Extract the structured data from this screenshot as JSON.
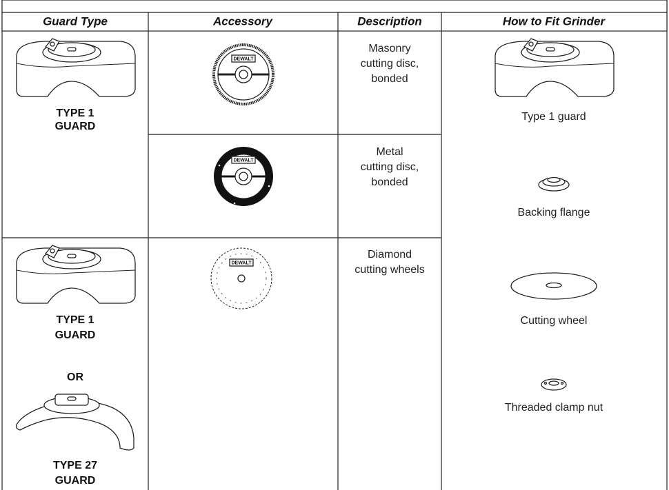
{
  "header": {
    "columns": [
      "Guard Type",
      "Accessory",
      "Description",
      "How to Fit Grinder"
    ]
  },
  "guards": [
    {
      "lines": [
        "TYPE 1",
        "GUARD"
      ]
    },
    {
      "lines": [
        "TYPE 1",
        "GUARD"
      ],
      "separator": "OR",
      "alt_lines": [
        "TYPE 27",
        "GUARD"
      ]
    }
  ],
  "accessories": [
    {
      "logo": "DEWALT",
      "description": [
        "Masonry",
        "cutting disc,",
        "bonded"
      ]
    },
    {
      "logo": "DEWALT",
      "description": [
        "Metal",
        "cutting disc,",
        "bonded"
      ]
    },
    {
      "logo": "DEWALT",
      "description": [
        "Diamond",
        "cutting wheels"
      ]
    }
  ],
  "fit": [
    "Type 1 guard",
    "Backing flange",
    "Cutting wheel",
    "Threaded clamp nut"
  ]
}
